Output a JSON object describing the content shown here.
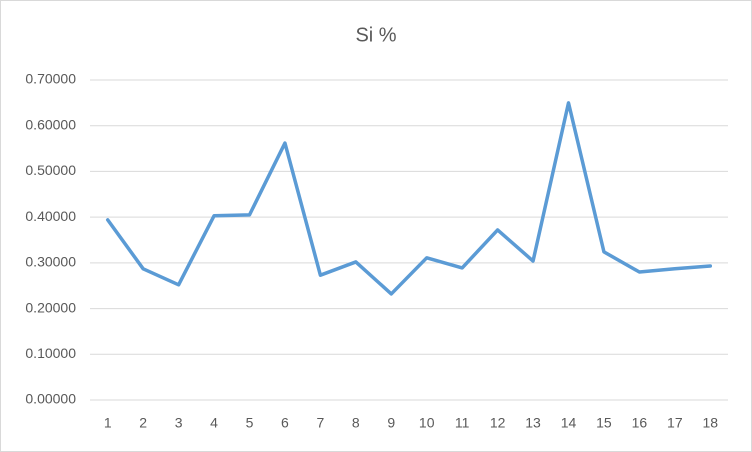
{
  "chart_data": {
    "type": "line",
    "title": "Si %",
    "categories": [
      "1",
      "2",
      "3",
      "4",
      "5",
      "6",
      "7",
      "8",
      "9",
      "10",
      "11",
      "12",
      "13",
      "14",
      "15",
      "16",
      "17",
      "18"
    ],
    "series": [
      {
        "name": "Si %",
        "color": "#5b9bd5",
        "values": [
          0.394,
          0.287,
          0.252,
          0.403,
          0.405,
          0.562,
          0.273,
          0.302,
          0.232,
          0.311,
          0.289,
          0.372,
          0.304,
          0.65,
          0.324,
          0.28,
          0.287,
          0.293
        ]
      }
    ],
    "ylim": [
      0,
      0.7
    ],
    "yticks": [
      {
        "value": 0,
        "label": "0.00000"
      },
      {
        "value": 0.1,
        "label": "0.10000"
      },
      {
        "value": 0.2,
        "label": "0.20000"
      },
      {
        "value": 0.3,
        "label": "0.30000"
      },
      {
        "value": 0.4,
        "label": "0.40000"
      },
      {
        "value": 0.5,
        "label": "0.50000"
      },
      {
        "value": 0.6,
        "label": "0.60000"
      },
      {
        "value": 0.7,
        "label": "0.70000"
      }
    ],
    "grid": true
  }
}
